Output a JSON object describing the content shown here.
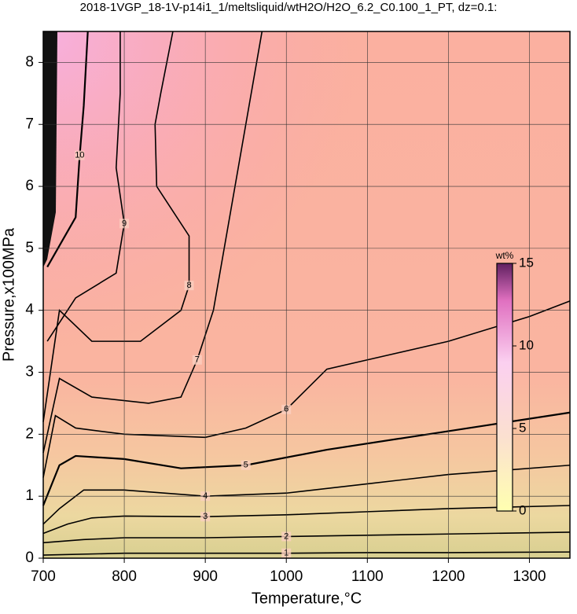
{
  "chart_data": {
    "type": "contour",
    "title": "2018-1VGP_18-1V-p14i1_1/meltsliquid/wtH2O/H2O_6.2_C0.100_1_PT, dz=0.1:",
    "x_label": "Temperature,°C",
    "y_label": "Pressure,x100MPa",
    "xlim": [
      700,
      1350
    ],
    "ylim": [
      0,
      8.5
    ],
    "xticks": [
      700,
      800,
      900,
      1000,
      1100,
      1200,
      1300
    ],
    "yticks": [
      0,
      1,
      2,
      3,
      4,
      5,
      6,
      7,
      8
    ],
    "grid": true,
    "contours": [
      {
        "level": 1,
        "x": [
          700,
          800,
          900,
          1000,
          1100,
          1200,
          1350
        ],
        "y": [
          0.05,
          0.08,
          0.08,
          0.08,
          0.09,
          0.09,
          0.1
        ]
      },
      {
        "level": 2,
        "x": [
          700,
          750,
          800,
          900,
          1000,
          1100,
          1200,
          1350
        ],
        "y": [
          0.25,
          0.3,
          0.33,
          0.33,
          0.35,
          0.37,
          0.39,
          0.42
        ]
      },
      {
        "level": 3,
        "x": [
          700,
          730,
          760,
          800,
          900,
          1000,
          1100,
          1200,
          1350
        ],
        "y": [
          0.4,
          0.55,
          0.65,
          0.68,
          0.67,
          0.7,
          0.75,
          0.8,
          0.85
        ]
      },
      {
        "level": 4,
        "x": [
          700,
          720,
          750,
          800,
          900,
          1000,
          1100,
          1200,
          1350
        ],
        "y": [
          0.55,
          0.8,
          1.1,
          1.1,
          1.0,
          1.05,
          1.2,
          1.35,
          1.5
        ]
      },
      {
        "level": 5,
        "x": [
          700,
          720,
          740,
          800,
          870,
          950,
          1050,
          1150,
          1250,
          1350
        ],
        "y": [
          0.85,
          1.5,
          1.65,
          1.6,
          1.45,
          1.5,
          1.75,
          1.95,
          2.15,
          2.35
        ]
      },
      {
        "level": 6,
        "x": [
          700,
          715,
          740,
          800,
          900,
          950,
          1000,
          1050,
          1100,
          1200,
          1300,
          1350
        ],
        "y": [
          1.3,
          2.3,
          2.1,
          2.0,
          1.95,
          2.1,
          2.4,
          3.05,
          3.2,
          3.5,
          3.9,
          4.15
        ]
      },
      {
        "level": 7,
        "x": [
          700,
          720,
          760,
          830,
          870,
          890,
          910,
          930,
          950,
          970
        ],
        "y": [
          1.7,
          2.9,
          2.6,
          2.5,
          2.6,
          3.2,
          4.0,
          5.5,
          7.0,
          8.5
        ]
      },
      {
        "level": 8,
        "x": [
          700,
          720,
          760,
          820,
          870,
          880,
          880,
          840,
          838,
          845,
          860
        ],
        "y": [
          2.2,
          4.0,
          3.5,
          3.5,
          4.0,
          4.4,
          5.2,
          6.0,
          7.0,
          7.5,
          8.5
        ]
      },
      {
        "level": 9,
        "x": [
          705,
          740,
          790,
          800,
          790,
          795,
          795
        ],
        "y": [
          3.5,
          4.2,
          4.6,
          5.4,
          6.3,
          7.5,
          8.5
        ]
      },
      {
        "level": 10,
        "x": [
          705,
          740,
          745,
          750,
          755
        ],
        "y": [
          4.7,
          5.5,
          6.5,
          7.3,
          8.5
        ]
      }
    ],
    "colorbar": {
      "label": "wt%",
      "lim": [
        0,
        15
      ],
      "ticks": [
        0,
        5,
        10,
        15
      ]
    }
  }
}
